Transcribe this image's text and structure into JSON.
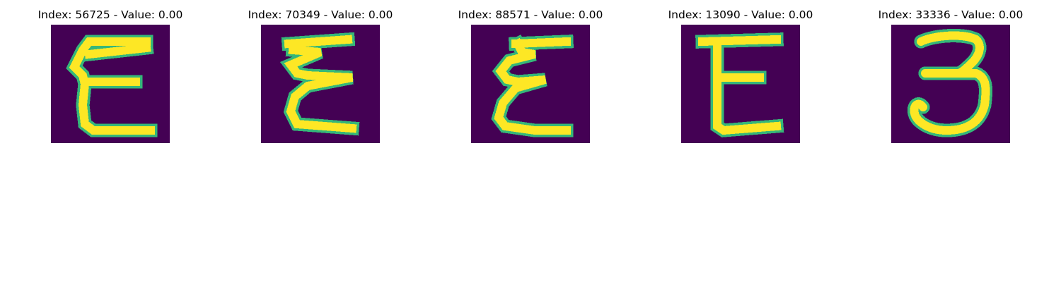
{
  "figure": {
    "panels": [
      {
        "title": "Index: 56725 - Value: 0.00",
        "glyph": "E"
      },
      {
        "title": "Index: 70349 - Value: 0.00",
        "glyph": "Σ"
      },
      {
        "title": "Index: 88571 - Value: 0.00",
        "glyph": "Σ"
      },
      {
        "title": "Index: 13090 - Value: 0.00",
        "glyph": "E"
      },
      {
        "title": "Index: 33336 - Value: 0.00",
        "glyph": "3"
      }
    ],
    "colormap": "viridis",
    "colors": {
      "background": "#440154",
      "stroke_core": "#fde725",
      "stroke_edge": "#35b779",
      "stroke_mid": "#21918c"
    }
  }
}
